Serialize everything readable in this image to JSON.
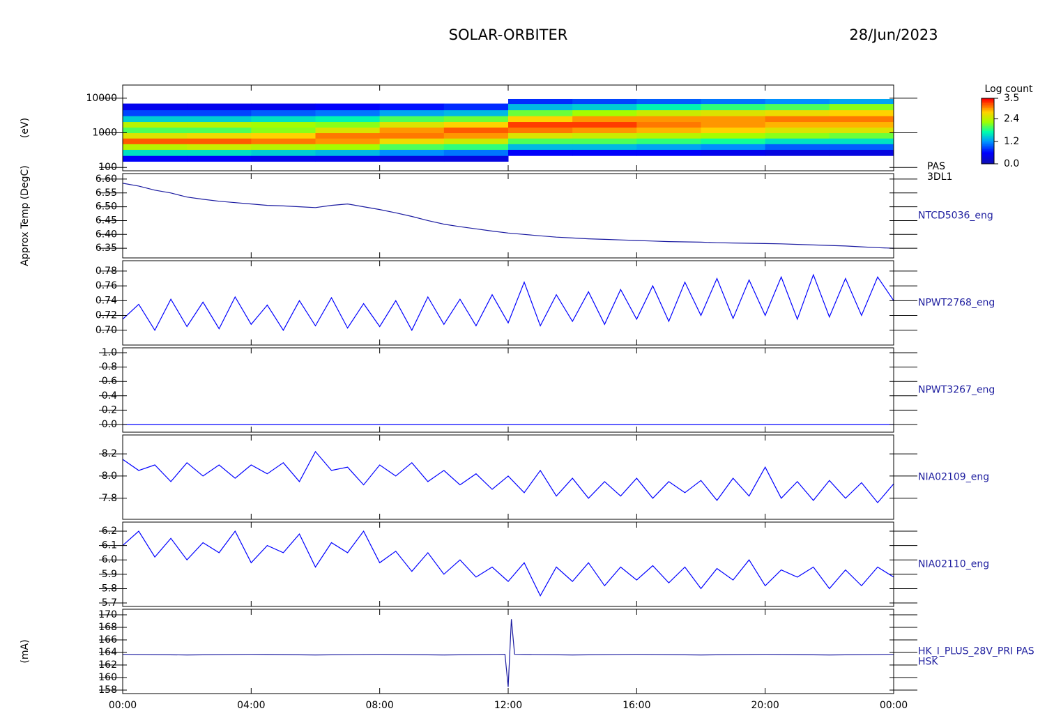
{
  "header": {
    "title": "SOLAR-ORBITER",
    "date": "28/Jun/2023"
  },
  "x_axis": {
    "xlim": [
      0,
      24
    ],
    "xticks": [
      {
        "value": 0,
        "label": "00:00"
      },
      {
        "value": 4,
        "label": "04:00"
      },
      {
        "value": 8,
        "label": "08:00"
      },
      {
        "value": 12,
        "label": "12:00"
      },
      {
        "value": 16,
        "label": "16:00"
      },
      {
        "value": 20,
        "label": "20:00"
      },
      {
        "value": 24,
        "label": "00:00"
      }
    ]
  },
  "chart_data": [
    {
      "type": "heatmap",
      "ylabel": "(eV)",
      "labels": [
        "PAS",
        "3DL1"
      ],
      "log": true,
      "ylim": [
        80,
        24000
      ],
      "yticks": [
        100,
        1000,
        10000
      ],
      "colormap": "rainbow",
      "colorbar_title": "Log count",
      "zlim": [
        0,
        3.5
      ],
      "zticks": [
        {
          "value": 0,
          "label": "0.0"
        },
        1.2,
        2.4,
        3.5
      ],
      "x_edges": [
        0,
        2,
        4,
        6,
        8,
        10,
        12,
        14,
        16,
        18,
        20,
        22,
        24
      ],
      "y_edges": [
        150,
        220,
        330,
        480,
        700,
        1000,
        1450,
        2100,
        3100,
        4600,
        7000,
        9500
      ],
      "z": [
        [
          0.6,
          1.6,
          2.4,
          3.2,
          2.6,
          2.0,
          2.4,
          1.5,
          0.9,
          0.5,
          null
        ],
        [
          0.6,
          1.6,
          2.5,
          3.2,
          2.7,
          2.0,
          2.4,
          1.5,
          0.9,
          0.5,
          null
        ],
        [
          0.5,
          1.5,
          2.4,
          3.1,
          2.8,
          2.2,
          2.3,
          1.6,
          1.0,
          0.5,
          null
        ],
        [
          0.5,
          1.4,
          2.3,
          3.0,
          3.1,
          2.6,
          2.2,
          1.7,
          1.1,
          0.6,
          null
        ],
        [
          0.4,
          1.2,
          2.0,
          2.7,
          3.1,
          3.0,
          2.6,
          2.0,
          1.3,
          0.7,
          null
        ],
        [
          0.4,
          1.1,
          1.9,
          2.5,
          3.0,
          3.2,
          2.8,
          2.1,
          1.4,
          0.8,
          null
        ],
        [
          null,
          0.6,
          1.4,
          2.0,
          2.6,
          3.1,
          3.3,
          2.8,
          2.1,
          1.4,
          0.8
        ],
        [
          null,
          0.6,
          1.4,
          2.0,
          2.5,
          3.0,
          3.3,
          3.0,
          2.3,
          1.5,
          0.9
        ],
        [
          null,
          0.6,
          1.3,
          1.9,
          2.4,
          2.9,
          3.1,
          3.0,
          2.5,
          1.7,
          1.0
        ],
        [
          null,
          0.5,
          1.2,
          1.8,
          2.3,
          2.8,
          3.0,
          3.0,
          2.6,
          1.9,
          1.1
        ],
        [
          null,
          0.4,
          1.0,
          1.6,
          2.2,
          2.6,
          2.9,
          3.1,
          2.7,
          2.0,
          1.2
        ],
        [
          null,
          0.4,
          1.0,
          1.6,
          2.1,
          2.6,
          2.9,
          3.1,
          2.8,
          2.2,
          1.3
        ]
      ]
    },
    {
      "type": "line",
      "ylabel": "Approx Temp (DegC)",
      "labels": [
        "NTCD5036_eng"
      ],
      "color": "#1a1aa0",
      "ylim": [
        6.315,
        6.62
      ],
      "yticks": [
        6.35,
        {
          "value": 6.4,
          "label": "6.40"
        },
        6.45,
        {
          "value": 6.5,
          "label": "6.50"
        },
        6.55,
        {
          "value": 6.6,
          "label": "6.60"
        }
      ],
      "x": [
        0,
        0.5,
        1,
        1.5,
        2,
        2.5,
        3,
        3.5,
        4,
        4.5,
        5,
        5.5,
        6,
        6.5,
        7,
        7.5,
        8,
        8.5,
        9,
        9.5,
        10,
        10.5,
        11,
        11.5,
        12,
        12.5,
        13,
        13.5,
        14,
        14.5,
        15,
        15.5,
        16,
        16.5,
        17,
        17.5,
        18,
        18.5,
        19,
        19.5,
        20,
        20.5,
        21,
        21.5,
        22,
        22.5,
        23,
        23.5,
        24
      ],
      "values": [
        6.585,
        6.575,
        6.56,
        6.55,
        6.535,
        6.527,
        6.52,
        6.515,
        6.51,
        6.505,
        6.503,
        6.5,
        6.497,
        6.505,
        6.51,
        6.5,
        6.49,
        6.478,
        6.465,
        6.45,
        6.437,
        6.428,
        6.42,
        6.412,
        6.405,
        6.4,
        6.395,
        6.39,
        6.387,
        6.384,
        6.382,
        6.38,
        6.378,
        6.376,
        6.374,
        6.373,
        6.372,
        6.37,
        6.369,
        6.368,
        6.367,
        6.366,
        6.364,
        6.362,
        6.36,
        6.358,
        6.355,
        6.352,
        6.35
      ]
    },
    {
      "type": "line",
      "labels": [
        "NPWT2768_eng"
      ],
      "color": "#0000ff",
      "ylim": [
        0.68,
        0.794
      ],
      "yticks": [
        {
          "value": 0.7,
          "label": "0.70"
        },
        0.72,
        0.74,
        0.76,
        0.78
      ],
      "x": [
        0,
        0.5,
        1,
        1.5,
        2,
        2.5,
        3,
        3.5,
        4,
        4.5,
        5,
        5.5,
        6,
        6.5,
        7,
        7.5,
        8,
        8.5,
        9,
        9.5,
        10,
        10.5,
        11,
        11.5,
        12,
        12.5,
        13,
        13.5,
        14,
        14.5,
        15,
        15.5,
        16,
        16.5,
        17,
        17.5,
        18,
        18.5,
        19,
        19.5,
        20,
        20.5,
        21,
        21.5,
        22,
        22.5,
        23,
        23.5,
        24
      ],
      "values": [
        0.715,
        0.735,
        0.7,
        0.742,
        0.705,
        0.738,
        0.702,
        0.745,
        0.708,
        0.734,
        0.7,
        0.74,
        0.706,
        0.744,
        0.703,
        0.736,
        0.705,
        0.74,
        0.7,
        0.745,
        0.708,
        0.742,
        0.706,
        0.748,
        0.71,
        0.765,
        0.706,
        0.748,
        0.712,
        0.752,
        0.708,
        0.755,
        0.715,
        0.76,
        0.712,
        0.765,
        0.72,
        0.77,
        0.716,
        0.768,
        0.72,
        0.772,
        0.715,
        0.775,
        0.718,
        0.77,
        0.72,
        0.772,
        0.74
      ]
    },
    {
      "type": "line",
      "labels": [
        "NPWT3267_eng"
      ],
      "color": "#0000ff",
      "ylim": [
        -0.107,
        1.068
      ],
      "yticks": [
        {
          "value": 0,
          "label": "0.0"
        },
        0.2,
        0.4,
        0.6,
        0.8,
        {
          "value": 1,
          "label": "1.0"
        }
      ],
      "x": [
        0,
        0.5,
        1,
        1.5,
        2,
        2.5,
        3,
        3.5,
        4,
        4.5,
        5,
        5.5,
        6,
        6.5,
        7,
        7.5,
        8,
        8.5,
        9,
        9.5,
        10,
        10.5,
        11,
        11.5,
        12,
        12.5,
        13,
        13.5,
        14,
        14.5,
        15,
        15.5,
        16,
        16.5,
        17,
        17.5,
        18,
        18.5,
        19,
        19.5,
        20,
        20.5,
        21,
        21.5,
        22,
        22.5,
        23,
        23.5,
        24
      ],
      "values": [
        0,
        0,
        0,
        0,
        0,
        0,
        0,
        0,
        0,
        0,
        0,
        0,
        0,
        0,
        0,
        0,
        0,
        0,
        0,
        0,
        0,
        0,
        0,
        0,
        0,
        0,
        0,
        0,
        0,
        0,
        0,
        0,
        0,
        0,
        0,
        0,
        0,
        0,
        0,
        0,
        0,
        0,
        0,
        0,
        0,
        0,
        0,
        0,
        0
      ]
    },
    {
      "type": "line",
      "labels": [
        "NIA02109_eng"
      ],
      "color": "#0000ff",
      "ylim": [
        7.61,
        8.37
      ],
      "yticks": [
        7.8,
        {
          "value": 8,
          "label": "8.0"
        },
        8.2
      ],
      "x": [
        0,
        0.5,
        1,
        1.5,
        2,
        2.5,
        3,
        3.5,
        4,
        4.5,
        5,
        5.5,
        6,
        6.5,
        7,
        7.5,
        8,
        8.5,
        9,
        9.5,
        10,
        10.5,
        11,
        11.5,
        12,
        12.5,
        13,
        13.5,
        14,
        14.5,
        15,
        15.5,
        16,
        16.5,
        17,
        17.5,
        18,
        18.5,
        19,
        19.5,
        20,
        20.5,
        21,
        21.5,
        22,
        22.5,
        23,
        23.5,
        24
      ],
      "values": [
        8.15,
        8.05,
        8.1,
        7.95,
        8.12,
        8.0,
        8.1,
        7.98,
        8.1,
        8.02,
        8.12,
        7.95,
        8.22,
        8.05,
        8.08,
        7.92,
        8.1,
        8.0,
        8.12,
        7.95,
        8.05,
        7.92,
        8.02,
        7.88,
        8.0,
        7.85,
        8.05,
        7.82,
        7.98,
        7.8,
        7.95,
        7.82,
        7.98,
        7.8,
        7.95,
        7.85,
        7.96,
        7.78,
        7.98,
        7.82,
        8.08,
        7.8,
        7.95,
        7.78,
        7.96,
        7.8,
        7.94,
        7.76,
        7.93
      ]
    },
    {
      "type": "line",
      "labels": [
        "NIA02110_eng"
      ],
      "color": "#0000ff",
      "ylim": [
        5.676,
        6.263
      ],
      "yticks": [
        5.7,
        5.8,
        5.9,
        {
          "value": 6,
          "label": "6.0"
        },
        6.1,
        6.2
      ],
      "x": [
        0,
        0.5,
        1,
        1.5,
        2,
        2.5,
        3,
        3.5,
        4,
        4.5,
        5,
        5.5,
        6,
        6.5,
        7,
        7.5,
        8,
        8.5,
        9,
        9.5,
        10,
        10.5,
        11,
        11.5,
        12,
        12.5,
        13,
        13.5,
        14,
        14.5,
        15,
        15.5,
        16,
        16.5,
        17,
        17.5,
        18,
        18.5,
        19,
        19.5,
        20,
        20.5,
        21,
        21.5,
        22,
        22.5,
        23,
        23.5,
        24
      ],
      "values": [
        6.1,
        6.2,
        6.02,
        6.15,
        6.0,
        6.12,
        6.05,
        6.2,
        5.98,
        6.1,
        6.05,
        6.18,
        5.95,
        6.12,
        6.05,
        6.2,
        5.98,
        6.06,
        5.92,
        6.05,
        5.9,
        6.0,
        5.88,
        5.95,
        5.85,
        5.98,
        5.75,
        5.95,
        5.85,
        5.98,
        5.82,
        5.95,
        5.86,
        5.96,
        5.84,
        5.95,
        5.8,
        5.94,
        5.86,
        6.0,
        5.82,
        5.93,
        5.88,
        5.95,
        5.8,
        5.93,
        5.82,
        5.95,
        5.88
      ]
    },
    {
      "type": "line",
      "ylabel": "(mA)",
      "labels": [
        "HK_I_PLUS_28V_PRI PAS",
        "HSK"
      ],
      "color": "#1a1aa0",
      "ylim": [
        157.44,
        170.89
      ],
      "yticks": [
        158,
        160,
        162,
        164,
        166,
        168,
        170
      ],
      "x": [
        0,
        2,
        4,
        6,
        8,
        10,
        11.9,
        12.0,
        12.1,
        12.2,
        14,
        16,
        18,
        20,
        22,
        24
      ],
      "values": [
        163.7,
        163.6,
        163.7,
        163.6,
        163.7,
        163.6,
        163.7,
        158.5,
        169.3,
        163.7,
        163.6,
        163.7,
        163.6,
        163.7,
        163.6,
        163.7
      ]
    }
  ]
}
